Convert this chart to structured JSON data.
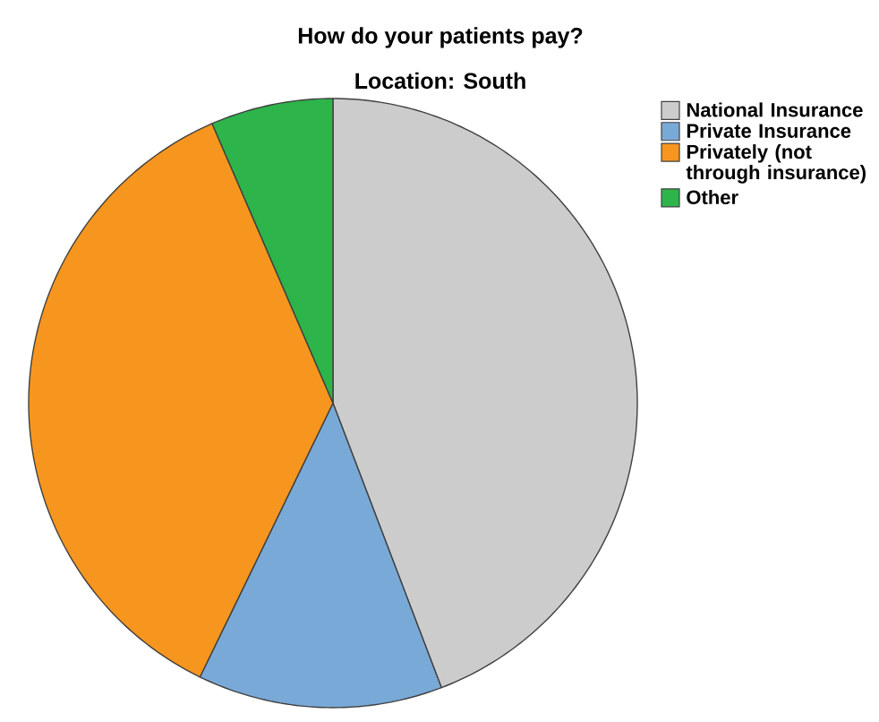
{
  "chart_data": {
    "type": "pie",
    "title": "How do your patients pay?",
    "subtitle": "Location: South",
    "categories": [
      "National Insurance",
      "Private Insurance",
      "Privately (not through insurance)",
      "Other"
    ],
    "values": [
      44.2,
      13.0,
      36.3,
      6.5
    ],
    "colors": [
      "#cccccc",
      "#79a9d7",
      "#f7961e",
      "#2db44a"
    ],
    "legend": "right"
  }
}
